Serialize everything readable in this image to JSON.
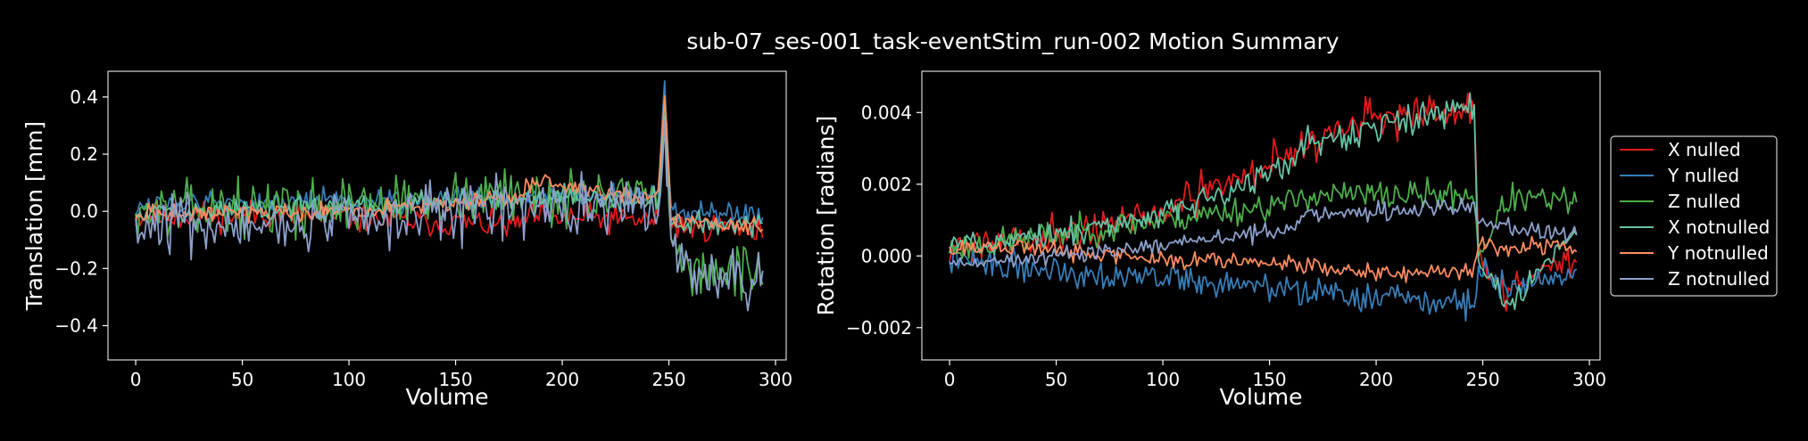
{
  "figure": {
    "title": "sub-07_ses-001_task-eventStim_run-002 Motion Summary",
    "background": "#000000",
    "foreground": "#ffffff"
  },
  "legend": {
    "placement": "right",
    "entries": [
      {
        "label": "X nulled",
        "color": "#e41a1c"
      },
      {
        "label": "Y nulled",
        "color": "#377eb8"
      },
      {
        "label": "Z nulled",
        "color": "#4daf4a"
      },
      {
        "label": "X notnulled",
        "color": "#66c2a5"
      },
      {
        "label": "Y notnulled",
        "color": "#fc8d62"
      },
      {
        "label": "Z notnulled",
        "color": "#8da0cb"
      }
    ]
  },
  "chart_data": [
    {
      "type": "line",
      "title": "",
      "xlabel": "Volume",
      "ylabel": "Translation [mm]",
      "xlim": [
        -13,
        305
      ],
      "ylim": [
        -0.52,
        0.49
      ],
      "xticks": [
        0,
        50,
        100,
        150,
        200,
        250,
        300
      ],
      "yticks": [
        -0.4,
        -0.2,
        0.0,
        0.2,
        0.4
      ],
      "ytick_labels": [
        "−0.4",
        "−0.2",
        "0.0",
        "0.2",
        "0.4"
      ],
      "grid": false,
      "n_volumes": 295,
      "series": [
        {
          "name": "X nulled",
          "color": "#e41a1c",
          "seed": 11,
          "noise": 0.025,
          "anchors": [
            [
              0,
              -0.02
            ],
            [
              60,
              -0.01
            ],
            [
              120,
              -0.03
            ],
            [
              180,
              -0.05
            ],
            [
              183,
              -0.02
            ],
            [
              245,
              -0.03
            ],
            [
              248,
              0.4
            ],
            [
              251,
              -0.05
            ],
            [
              295,
              -0.06
            ]
          ]
        },
        {
          "name": "Y nulled",
          "color": "#377eb8",
          "seed": 12,
          "noise": 0.02,
          "anchors": [
            [
              0,
              0.02
            ],
            [
              100,
              0.04
            ],
            [
              180,
              0.05
            ],
            [
              245,
              0.06
            ],
            [
              248,
              0.44
            ],
            [
              251,
              0.0
            ],
            [
              295,
              -0.02
            ]
          ]
        },
        {
          "name": "Z nulled",
          "color": "#4daf4a",
          "seed": 13,
          "noise": 0.045,
          "anchors": [
            [
              0,
              0.0
            ],
            [
              100,
              0.02
            ],
            [
              180,
              0.06
            ],
            [
              245,
              0.04
            ],
            [
              248,
              0.35
            ],
            [
              251,
              -0.12
            ],
            [
              260,
              -0.2
            ],
            [
              295,
              -0.22
            ]
          ]
        },
        {
          "name": "X notnulled",
          "color": "#66c2a5",
          "seed": 14,
          "noise": 0.02,
          "anchors": [
            [
              0,
              0.0
            ],
            [
              100,
              0.01
            ],
            [
              180,
              0.05
            ],
            [
              245,
              0.04
            ],
            [
              248,
              0.3
            ],
            [
              251,
              -0.05
            ],
            [
              295,
              -0.05
            ]
          ]
        },
        {
          "name": "Y notnulled",
          "color": "#fc8d62",
          "seed": 15,
          "noise": 0.015,
          "anchors": [
            [
              0,
              -0.01
            ],
            [
              100,
              0.0
            ],
            [
              180,
              0.05
            ],
            [
              183,
              0.1
            ],
            [
              245,
              0.05
            ],
            [
              248,
              0.42
            ],
            [
              251,
              -0.03
            ],
            [
              295,
              -0.06
            ]
          ]
        },
        {
          "name": "Z notnulled",
          "color": "#8da0cb",
          "seed": 16,
          "noise": 0.05,
          "anchors": [
            [
              0,
              -0.05
            ],
            [
              100,
              -0.03
            ],
            [
              180,
              0.02
            ],
            [
              245,
              0.0
            ],
            [
              248,
              0.3
            ],
            [
              251,
              -0.15
            ],
            [
              260,
              -0.22
            ],
            [
              295,
              -0.26
            ]
          ]
        }
      ]
    },
    {
      "type": "line",
      "title": "",
      "xlabel": "Volume",
      "ylabel": "Rotation [radians]",
      "xlim": [
        -13,
        305
      ],
      "ylim": [
        -0.0029,
        0.00515
      ],
      "xticks": [
        0,
        50,
        100,
        150,
        200,
        250,
        300
      ],
      "yticks": [
        -0.002,
        0.0,
        0.002,
        0.004
      ],
      "ytick_labels": [
        "−0.002",
        "0.000",
        "0.002",
        "0.004"
      ],
      "grid": false,
      "n_volumes": 295,
      "series": [
        {
          "name": "X nulled",
          "color": "#e41a1c",
          "seed": 21,
          "noise": 0.00025,
          "anchors": [
            [
              0,
              0.0003
            ],
            [
              50,
              0.0006
            ],
            [
              100,
              0.0012
            ],
            [
              150,
              0.0026
            ],
            [
              190,
              0.0038
            ],
            [
              246,
              0.004
            ],
            [
              248,
              0.0
            ],
            [
              260,
              -0.001
            ],
            [
              295,
              0.0
            ]
          ]
        },
        {
          "name": "Y nulled",
          "color": "#377eb8",
          "seed": 22,
          "noise": 0.0002,
          "anchors": [
            [
              0,
              -0.0001
            ],
            [
              50,
              -0.0004
            ],
            [
              100,
              -0.0006
            ],
            [
              150,
              -0.0009
            ],
            [
              200,
              -0.0012
            ],
            [
              246,
              -0.0013
            ],
            [
              248,
              -0.0004
            ],
            [
              260,
              -0.0008
            ],
            [
              295,
              -0.0005
            ]
          ]
        },
        {
          "name": "Z nulled",
          "color": "#4daf4a",
          "seed": 23,
          "noise": 0.0002,
          "anchors": [
            [
              0,
              0.0002
            ],
            [
              50,
              0.0006
            ],
            [
              100,
              0.001
            ],
            [
              162,
              0.0015
            ],
            [
              165,
              0.0017
            ],
            [
              246,
              0.0017
            ],
            [
              248,
              0.0
            ],
            [
              262,
              0.0016
            ],
            [
              295,
              0.0015
            ]
          ]
        },
        {
          "name": "X notnulled",
          "color": "#66c2a5",
          "seed": 24,
          "noise": 0.0002,
          "anchors": [
            [
              0,
              0.0003
            ],
            [
              50,
              0.0006
            ],
            [
              100,
              0.0011
            ],
            [
              150,
              0.0024
            ],
            [
              162,
              0.0025
            ],
            [
              165,
              0.003
            ],
            [
              200,
              0.0036
            ],
            [
              246,
              0.0042
            ],
            [
              248,
              0.0
            ],
            [
              260,
              -0.0015
            ],
            [
              295,
              0.0008
            ]
          ]
        },
        {
          "name": "Y notnulled",
          "color": "#fc8d62",
          "seed": 25,
          "noise": 0.00012,
          "anchors": [
            [
              0,
              0.0002
            ],
            [
              50,
              0.0002
            ],
            [
              100,
              -0.0001
            ],
            [
              150,
              -0.0002
            ],
            [
              200,
              -0.0005
            ],
            [
              246,
              -0.0004
            ],
            [
              248,
              0.0004
            ],
            [
              260,
              0.0002
            ],
            [
              295,
              0.0003
            ]
          ]
        },
        {
          "name": "Z notnulled",
          "color": "#8da0cb",
          "seed": 26,
          "noise": 0.00012,
          "anchors": [
            [
              0,
              -0.0002
            ],
            [
              50,
              0.0
            ],
            [
              100,
              0.0003
            ],
            [
              150,
              0.0007
            ],
            [
              162,
              0.0008
            ],
            [
              165,
              0.0011
            ],
            [
              246,
              0.0014
            ],
            [
              248,
              0.0009
            ],
            [
              295,
              0.0006
            ]
          ]
        }
      ]
    }
  ]
}
